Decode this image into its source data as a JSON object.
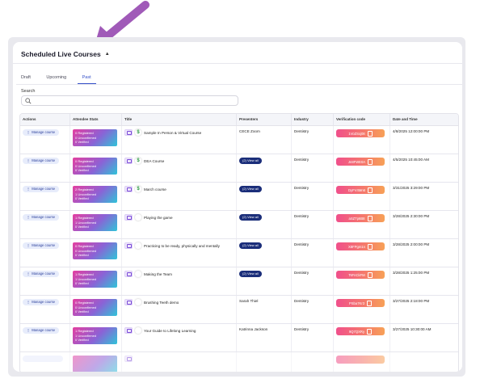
{
  "header": {
    "title": "Scheduled Live Courses"
  },
  "tabs": [
    {
      "label": "Draft",
      "active": false
    },
    {
      "label": "Upcoming",
      "active": false
    },
    {
      "label": "Past",
      "active": true
    }
  ],
  "search": {
    "label": "Search",
    "placeholder": ""
  },
  "table": {
    "columns": [
      "Actions",
      "Attendee Stats",
      "Title",
      "Presenters",
      "Industry",
      "Verification code",
      "Date and Time"
    ],
    "manage_label": "Manage course",
    "view_all_label": "(2) View all",
    "rows": [
      {
        "registered": "0 Registered",
        "unconfirmed": "0 Unconfirmed",
        "verified": "0 Verified",
        "title": "Sample In Person & Virtual Course",
        "paid": true,
        "presenter": "CECE Zoom",
        "industry": "Dentistry",
        "code": "1VoZSxj08",
        "date": "4/8/2025 12:00:00 PM"
      },
      {
        "registered": "0 Registered",
        "unconfirmed": "0 Unconfirmed",
        "verified": "0 Verified",
        "title": "DEA Course",
        "paid": true,
        "presenter": "",
        "industry": "Dentistry",
        "code": "Jn8FWE0A",
        "date": "4/5/2025 10:45:00 AM"
      },
      {
        "registered": "2 Registered",
        "unconfirmed": "1 Unconfirmed",
        "verified": "0 Verified",
        "title": "March course",
        "paid": true,
        "presenter": "",
        "industry": "Dentistry",
        "code": "DyFV4Mn6",
        "date": "3/31/2025 3:29:00 PM"
      },
      {
        "registered": "1 Registered",
        "unconfirmed": "1 Unconfirmed",
        "verified": "0 Verified",
        "title": "Playing the game",
        "paid": false,
        "presenter": "",
        "industry": "Dentistry",
        "code": "aSZTp6B8",
        "date": "3/28/2025 2:30:00 PM"
      },
      {
        "registered": "0 Registered",
        "unconfirmed": "0 Unconfirmed",
        "verified": "0 Verified",
        "title": "Practicing to be ready, physically and mentally",
        "paid": false,
        "presenter": "",
        "industry": "Dentistry",
        "code": "X8FPgm1n",
        "date": "3/28/2025 2:00:00 PM"
      },
      {
        "registered": "1 Registered",
        "unconfirmed": "1 Unconfirmed",
        "verified": "0 Verified",
        "title": "Making the Team",
        "paid": false,
        "presenter": "",
        "industry": "Dentistry",
        "code": "TsFnCkFM",
        "date": "3/28/2025 1:25:00 PM"
      },
      {
        "registered": "0 Registered",
        "unconfirmed": "0 Unconfirmed",
        "verified": "0 Verified",
        "title": "Brushing Teeth demo",
        "paid": false,
        "presenter": "Sarah Thiel",
        "industry": "Dentistry",
        "code": "PSba7Kr3",
        "date": "3/27/2025 2:18:00 PM"
      },
      {
        "registered": "1 Registered",
        "unconfirmed": "1 Unconfirmed",
        "verified": "0 Verified",
        "title": "Your Guide to Lifelong Learning",
        "paid": false,
        "presenter": "Katrinna Jackson",
        "industry": "Dentistry",
        "code": "9Q7QXRy",
        "date": "3/27/2025 10:30:00 AM"
      }
    ]
  }
}
